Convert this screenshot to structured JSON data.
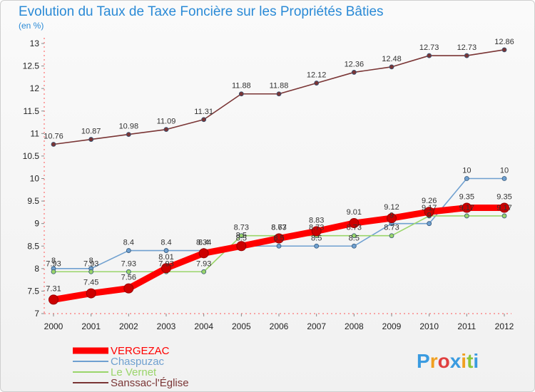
{
  "chart_data": {
    "type": "line",
    "title": "Evolution du Taux de Taxe Foncière sur les Propriétés Bâties",
    "subtitle": "(en %)",
    "xlabel": "",
    "ylabel": "",
    "x": [
      2000,
      2001,
      2002,
      2003,
      2004,
      2005,
      2006,
      2007,
      2008,
      2009,
      2010,
      2011,
      2012
    ],
    "ylim": [
      7,
      13
    ],
    "y_ticks": [
      7,
      7.5,
      8,
      8.5,
      9,
      9.5,
      10,
      10.5,
      11,
      11.5,
      12,
      12.5,
      13
    ],
    "grid": false,
    "legend_position": "bottom-left",
    "series": [
      {
        "name": "VERGEZAC",
        "color": "#ff0000",
        "emphasis": true,
        "values": [
          7.31,
          7.45,
          7.56,
          8.01,
          8.34,
          8.5,
          8.67,
          8.83,
          9.01,
          9.12,
          9.26,
          9.35,
          9.35
        ]
      },
      {
        "name": "Chaspuzac",
        "color": "#6fa0d0",
        "emphasis": false,
        "values": [
          8,
          8,
          8.4,
          8.4,
          8.4,
          8.5,
          8.5,
          8.5,
          8.5,
          9,
          9,
          10,
          10
        ]
      },
      {
        "name": "Le Vernet",
        "color": "#9ad56a",
        "emphasis": false,
        "values": [
          7.93,
          7.93,
          7.93,
          7.93,
          7.93,
          8.73,
          8.73,
          8.73,
          8.73,
          8.73,
          9.17,
          9.17,
          9.17
        ]
      },
      {
        "name": "Sanssac-l'Église",
        "color": "#7a3535",
        "emphasis": false,
        "values": [
          10.76,
          10.87,
          10.98,
          11.09,
          11.31,
          11.88,
          11.88,
          12.12,
          12.36,
          12.48,
          12.73,
          12.73,
          12.86
        ]
      }
    ]
  },
  "brand": {
    "letters": [
      "P",
      "r",
      "o",
      "x",
      "i",
      "t",
      "i"
    ],
    "colors": [
      "#3a9be0",
      "#f0a020",
      "#e04040",
      "#3a9be0",
      "#f0a020",
      "#8ac63c",
      "#3a9be0"
    ]
  }
}
